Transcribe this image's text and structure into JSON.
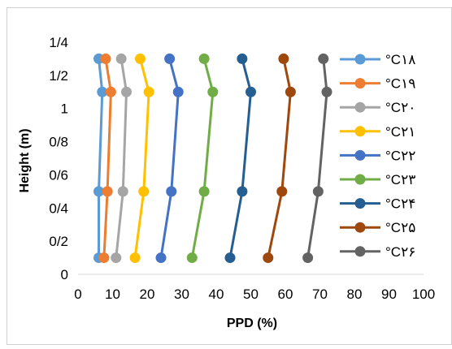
{
  "chart_data": {
    "type": "line",
    "title": "",
    "xlabel": "PPD (%)",
    "ylabel": "Height (m)",
    "xlim": [
      0,
      100
    ],
    "ylim": [
      0,
      1.4
    ],
    "x_ticks": [
      "0",
      "10",
      "20",
      "30",
      "40",
      "50",
      "60",
      "70",
      "80",
      "90",
      "100"
    ],
    "y_ticks": [
      "0",
      "0/2",
      "0/4",
      "0/6",
      "0/8",
      "1",
      "1/2",
      "1/4"
    ],
    "y_tick_values": [
      0,
      0.2,
      0.4,
      0.6,
      0.8,
      1.0,
      1.2,
      1.4
    ],
    "grid": false,
    "legend_position": "right",
    "heights": [
      0.1,
      0.5,
      1.1,
      1.3
    ],
    "series": [
      {
        "name": "°C۱۸",
        "color": "#5B9BD5",
        "ppd": [
          6.0,
          6.0,
          7.0,
          6.0
        ]
      },
      {
        "name": "°C۱۹",
        "color": "#ED7D31",
        "ppd": [
          7.5,
          8.5,
          9.5,
          8.0
        ]
      },
      {
        "name": "°C۲۰",
        "color": "#A5A5A5",
        "ppd": [
          11.0,
          13.0,
          14.0,
          12.5
        ]
      },
      {
        "name": "°C۲۱",
        "color": "#FFC000",
        "ppd": [
          16.5,
          19.0,
          20.5,
          18.0
        ]
      },
      {
        "name": "°C۲۲",
        "color": "#4472C4",
        "ppd": [
          24.0,
          27.0,
          29.0,
          26.5
        ]
      },
      {
        "name": "°C۲۳",
        "color": "#70AD47",
        "ppd": [
          33.0,
          36.5,
          39.0,
          36.5
        ]
      },
      {
        "name": "°C۲۴",
        "color": "#255E91",
        "ppd": [
          44.0,
          47.5,
          50.0,
          47.5
        ]
      },
      {
        "name": "°C۲۵",
        "color": "#9E480E",
        "ppd": [
          55.0,
          59.0,
          61.5,
          59.5
        ]
      },
      {
        "name": "°C۲۶",
        "color": "#636363",
        "ppd": [
          66.5,
          69.5,
          72.0,
          71.0
        ]
      }
    ]
  }
}
